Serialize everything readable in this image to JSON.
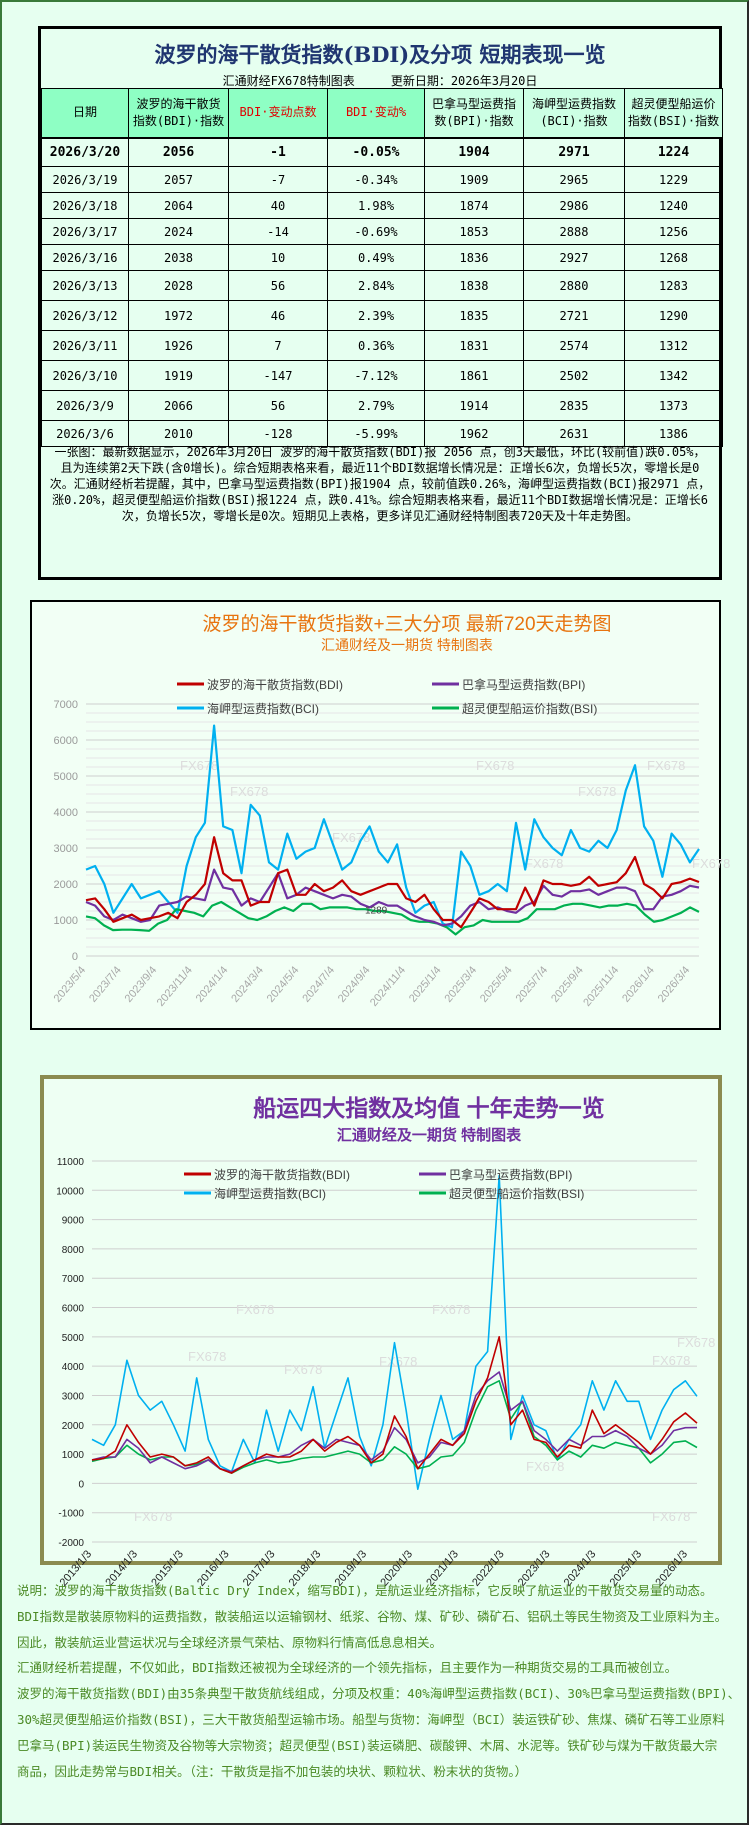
{
  "table_panel": {
    "title": "波罗的海干散货指数(BDI)及分项 短期表现一览",
    "subtitle": "汇通财经FX678特制图表     更新日期：2026年3月20日",
    "headers": [
      {
        "line1": "日期",
        "line2": ""
      },
      {
        "line1": "波罗的海干散货",
        "line2": "指数(BDI)·指数"
      },
      {
        "line1": "BDI·变动点数",
        "line2": ""
      },
      {
        "line1": "BDI·变动%",
        "line2": ""
      },
      {
        "line1": "巴拿马型运费指",
        "line2": "数(BPI)·指数"
      },
      {
        "line1": "海岬型运费指数",
        "line2": "(BCI)·指数"
      },
      {
        "line1": "超灵便型船运价",
        "line2": "指数(BSI)·指数"
      }
    ],
    "header_colors": {
      "highlight": "#8effc4",
      "normal": "#ccffe4",
      "change_text": "#e00000"
    },
    "rows": [
      [
        "2026/3/20",
        "2056",
        "-1",
        "-0.05%",
        "1904",
        "2971",
        "1224"
      ],
      [
        "2026/3/19",
        "2057",
        "-7",
        "-0.34%",
        "1909",
        "2965",
        "1229"
      ],
      [
        "2026/3/18",
        "2064",
        "40",
        "1.98%",
        "1874",
        "2986",
        "1240"
      ],
      [
        "2026/3/17",
        "2024",
        "-14",
        "-0.69%",
        "1853",
        "2888",
        "1256"
      ],
      [
        "2026/3/16",
        "2038",
        "10",
        "0.49%",
        "1836",
        "2927",
        "1268"
      ],
      [
        "2026/3/13",
        "2028",
        "56",
        "2.84%",
        "1838",
        "2880",
        "1283"
      ],
      [
        "2026/3/12",
        "1972",
        "46",
        "2.39%",
        "1835",
        "2721",
        "1290"
      ],
      [
        "2026/3/11",
        "1926",
        "7",
        "0.36%",
        "1831",
        "2574",
        "1312"
      ],
      [
        "2026/3/10",
        "1919",
        "-147",
        "-7.12%",
        "1861",
        "2502",
        "1342"
      ],
      [
        "2026/3/9",
        "2066",
        "56",
        "2.79%",
        "1914",
        "2835",
        "1373"
      ],
      [
        "2026/3/6",
        "2010",
        "-128",
        "-5.99%",
        "1962",
        "2631",
        "1386"
      ]
    ],
    "summary": "一张图：最新数据显示，2026年3月20日 波罗的海干散货指数(BDI)报 2056 点，创3天最低，环比(较前值)跌0.05%，且为连续第2天下跌(含0增长)。综合短期表格来看，最近11个BDI数据增长情况是：正增长6次，负增长5次，零增长是0次。汇通财经析若提醒，其中，巴拿马型运费指数(BPI)报1904 点，较前值跌0.26%，海岬型运费指数(BCI)报2971 点，涨0.20%，超灵便型船运价指数(BSI)报1224 点，跌0.41%。综合短期表格来看，最近11个BDI数据增长情况是：正增长6次，负增长5次，零增长是0次。短期见上表格，更多详见汇通财经特制图表720天及十年走势图。"
  },
  "chart_data": [
    {
      "type": "line",
      "title": "波罗的海干散货指数+三大分项  最新720天走势图",
      "subtitle": "汇通财经及一期货  特制图表",
      "title_color": "#e8740f",
      "xlabel": "",
      "ylabel": "",
      "ylim": [
        0,
        7000
      ],
      "yticks": [
        "0",
        "1000",
        "2000",
        "3000",
        "4000",
        "5000",
        "6000",
        "7000"
      ],
      "xticks": [
        "2023/5/4",
        "2023/7/4",
        "2023/9/4",
        "2023/11/4",
        "2024/1/4",
        "2024/3/4",
        "2024/5/4",
        "2024/7/4",
        "2024/9/4",
        "2024/11/4",
        "2025/1/4",
        "2025/3/4",
        "2025/5/4",
        "2025/7/4",
        "2025/9/4",
        "2025/11/4",
        "2026/1/4",
        "2026/3/4"
      ],
      "x_range": [
        "2023/5/4",
        "2026/3/20"
      ],
      "grid": true,
      "legend": "top",
      "annotation": "1289",
      "watermark": "FX678",
      "series": [
        {
          "name": "波罗的海干散货指数(BDI)",
          "color": "#c00000",
          "values": [
            1550,
            1600,
            1300,
            950,
            1050,
            1150,
            1000,
            1050,
            1100,
            1200,
            1050,
            1500,
            1700,
            2000,
            3300,
            2300,
            2100,
            2100,
            1400,
            1500,
            1500,
            2300,
            2400,
            1700,
            1700,
            2000,
            1800,
            1900,
            2100,
            1800,
            1700,
            1800,
            1900,
            2000,
            2000,
            1600,
            1500,
            1700,
            1300,
            1000,
            1000,
            800,
            1200,
            1600,
            1500,
            1300,
            1300,
            1300,
            1900,
            1400,
            2100,
            2000,
            2000,
            1950,
            2000,
            2200,
            1950,
            2000,
            2050,
            2300,
            2750,
            2000,
            1850,
            1600,
            2000,
            2050,
            2150,
            2056
          ]
        },
        {
          "name": "巴拿马型运费指数(BPI)",
          "color": "#7030a0",
          "values": [
            1500,
            1400,
            1100,
            1000,
            1150,
            1050,
            950,
            1000,
            1400,
            1450,
            1500,
            1650,
            1600,
            1550,
            2400,
            1900,
            1850,
            1400,
            1600,
            1500,
            1900,
            2300,
            1600,
            1700,
            1900,
            1800,
            1700,
            1600,
            1700,
            1650,
            1450,
            1350,
            1500,
            1400,
            1400,
            1250,
            1100,
            1000,
            950,
            850,
            900,
            1100,
            1400,
            1500,
            1300,
            1350,
            1250,
            1200,
            1400,
            1500,
            1950,
            1700,
            1650,
            1800,
            1800,
            1850,
            1700,
            1800,
            1900,
            1900,
            1800,
            1300,
            1300,
            1650,
            1700,
            1800,
            1950,
            1904
          ]
        },
        {
          "name": "海岬型运费指数(BCI)",
          "color": "#00b0f0",
          "values": [
            2400,
            2500,
            2000,
            1200,
            1600,
            2000,
            1600,
            1700,
            1800,
            1500,
            1200,
            2500,
            3300,
            3700,
            6400,
            3600,
            3500,
            2300,
            4200,
            3900,
            2600,
            2400,
            3400,
            2700,
            2900,
            3000,
            3800,
            3100,
            2400,
            2600,
            3200,
            3600,
            2900,
            2600,
            3100,
            1900,
            1200,
            1400,
            1500,
            900,
            800,
            2900,
            2500,
            1700,
            1800,
            2000,
            1800,
            3700,
            2400,
            3800,
            3300,
            3000,
            2800,
            3500,
            3000,
            2900,
            3200,
            3000,
            3500,
            4600,
            5300,
            3600,
            3200,
            2200,
            3400,
            3100,
            2600,
            2971
          ]
        },
        {
          "name": "超灵便型船运价指数(BSI)",
          "color": "#00b050",
          "values": [
            1100,
            1050,
            850,
            720,
            730,
            730,
            720,
            700,
            900,
            1000,
            1300,
            1250,
            1200,
            1100,
            1400,
            1500,
            1350,
            1200,
            1050,
            1000,
            1100,
            1250,
            1350,
            1250,
            1450,
            1450,
            1300,
            1350,
            1350,
            1350,
            1300,
            1300,
            1250,
            1250,
            1200,
            1150,
            1000,
            950,
            950,
            900,
            800,
            600,
            800,
            850,
            1000,
            950,
            950,
            950,
            950,
            1050,
            1300,
            1300,
            1300,
            1400,
            1450,
            1450,
            1400,
            1350,
            1400,
            1400,
            1450,
            1400,
            1150,
            950,
            1000,
            1100,
            1200,
            1350,
            1224
          ]
        }
      ]
    },
    {
      "type": "line",
      "title": "船运四大指数及均值 十年走势一览",
      "subtitle": "汇通财经及一期货 特制图表",
      "title_color": "#7030a0",
      "xlabel": "",
      "ylabel": "",
      "ylim": [
        -2000,
        11000
      ],
      "yticks": [
        "-2000",
        "-1000",
        "0",
        "1000",
        "2000",
        "3000",
        "4000",
        "5000",
        "6000",
        "7000",
        "8000",
        "9000",
        "10000",
        "11000"
      ],
      "xticks": [
        "2013/1/3",
        "2014/1/3",
        "2015/1/3",
        "2016/1/3",
        "2017/1/3",
        "2018/1/3",
        "2019/1/3",
        "2020/1/3",
        "2021/1/3",
        "2022/1/3",
        "2023/1/3",
        "2024/1/3",
        "2025/1/3",
        "2026/1/3"
      ],
      "x_range": [
        "2013/1/3",
        "2026/3/20"
      ],
      "grid": true,
      "legend": "top",
      "watermark": "FX678",
      "series": [
        {
          "name": "波罗的海干散货指数(BDI)",
          "color": "#c00000",
          "values": [
            800,
            850,
            1100,
            2000,
            1400,
            900,
            1000,
            900,
            600,
            700,
            900,
            500,
            350,
            600,
            800,
            1000,
            900,
            900,
            1100,
            1500,
            1100,
            1400,
            1600,
            1300,
            700,
            1000,
            2300,
            1600,
            500,
            1000,
            1500,
            1300,
            1700,
            2800,
            3600,
            5000,
            2000,
            2500,
            1500,
            1400,
            900,
            1300,
            1200,
            2500,
            1700,
            2000,
            1700,
            1400,
            1000,
            1500,
            2100,
            2400,
            2056
          ]
        },
        {
          "name": "巴拿马型运费指数(BPI)",
          "color": "#7030a0",
          "values": [
            800,
            900,
            900,
            1500,
            1200,
            700,
            900,
            700,
            500,
            600,
            800,
            500,
            400,
            600,
            800,
            900,
            900,
            1000,
            1300,
            1500,
            1200,
            1500,
            1400,
            1300,
            800,
            1100,
            1900,
            1500,
            700,
            900,
            1400,
            1300,
            1800,
            3000,
            3500,
            3800,
            2500,
            2800,
            1800,
            1500,
            1100,
            1500,
            1300,
            1600,
            1600,
            1800,
            1600,
            1200,
            1000,
            1300,
            1800,
            1900,
            1904
          ]
        },
        {
          "name": "海岬型运费指数(BCI)",
          "color": "#00b0f0",
          "values": [
            1500,
            1300,
            2000,
            4200,
            3000,
            2500,
            2800,
            2000,
            1100,
            3600,
            1500,
            600,
            400,
            1500,
            700,
            2500,
            1100,
            2500,
            1800,
            3300,
            1200,
            2400,
            3600,
            1600,
            600,
            2000,
            4800,
            2500,
            -200,
            1500,
            3000,
            1500,
            1800,
            4000,
            4500,
            10500,
            1500,
            3000,
            2000,
            1800,
            800,
            1500,
            2000,
            3500,
            2500,
            3500,
            2800,
            2800,
            1500,
            2500,
            3200,
            3500,
            2971
          ]
        },
        {
          "name": "超灵便型船运价指数(BSI)",
          "color": "#00b050",
          "values": [
            750,
            850,
            900,
            1300,
            1000,
            800,
            900,
            900,
            600,
            650,
            800,
            500,
            350,
            550,
            700,
            800,
            700,
            750,
            850,
            900,
            900,
            1000,
            1100,
            1000,
            700,
            800,
            1250,
            1000,
            500,
            600,
            900,
            950,
            1400,
            2500,
            3300,
            3500,
            2200,
            2800,
            1600,
            1300,
            800,
            1100,
            900,
            1300,
            1200,
            1400,
            1300,
            1200,
            700,
            1000,
            1400,
            1450,
            1224
          ]
        }
      ]
    }
  ],
  "notes": [
    "说明：波罗的海干散货指数(Baltic Dry Index，缩写BDI)，是航运业经济指标，它反映了航运业的干散货交易量的动态。",
    "BDI指数是散装原物料的运费指数，散装船运以运输钢材、纸浆、谷物、煤、矿砂、磷矿石、铝矾土等民生物资及工业原料为主。",
    "因此，散装航运业营运状况与全球经济景气荣枯、原物料行情高低息息相关。",
    "汇通财经析若提醒，不仅如此，BDI指数还被视为全球经济的一个领先指标，且主要作为一种期货交易的工具而被创立。",
    "波罗的海干散货指数(BDI)由35条典型干散货航线组成，分项及权重：40%海岬型运费指数(BCI)、30%巴拿马型运费指数(BPI)、",
    "30%超灵便型船运价指数(BSI)，三大干散货船型运输市场。船型与货物：海岬型（BCI）装运铁矿砂、焦煤、磷矿石等工业原料",
    "巴拿马(BPI)装运民生物资及谷物等大宗物资；超灵便型(BSI)装运磷肥、碳酸钾、木屑、水泥等。铁矿砂与煤为干散货最大宗",
    "商品，因此走势常与BDI相关。（注：干散货是指不加包装的块状、颗粒状、粉末状的货物。）"
  ]
}
